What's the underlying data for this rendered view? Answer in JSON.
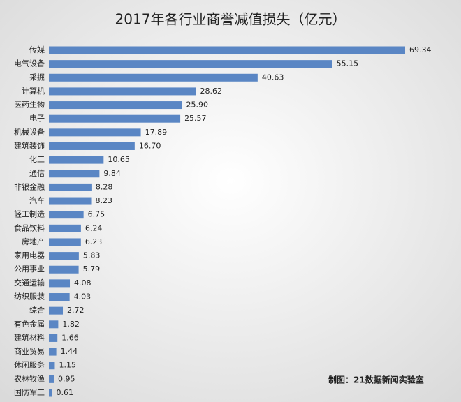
{
  "chart_data": {
    "type": "bar",
    "orientation": "horizontal",
    "title": "2017年各行业商誉减值损失（亿元）",
    "source": "制图：21数据新闻实验室",
    "color": "#5a86c4",
    "categories": [
      "传媒",
      "电气设备",
      "采掘",
      "计算机",
      "医药生物",
      "电子",
      "机械设备",
      "建筑装饰",
      "化工",
      "通信",
      "非银金融",
      "汽车",
      "轻工制造",
      "食品饮料",
      "房地产",
      "家用电器",
      "公用事业",
      "交通运输",
      "纺织服装",
      "综合",
      "有色金属",
      "建筑材料",
      "商业贸易",
      "休闲服务",
      "农林牧渔",
      "国防军工"
    ],
    "values": [
      69.34,
      55.15,
      40.63,
      28.62,
      25.9,
      25.57,
      17.89,
      16.7,
      10.65,
      9.84,
      8.28,
      8.23,
      6.75,
      6.24,
      6.23,
      5.83,
      5.79,
      4.08,
      4.03,
      2.72,
      1.82,
      1.66,
      1.44,
      1.15,
      0.95,
      0.61
    ],
    "value_labels": [
      "69.34",
      "55.15",
      "40.63",
      "28.62",
      "25.90",
      "25.57",
      "17.89",
      "16.70",
      "10.65",
      "9.84",
      "8.28",
      "8.23",
      "6.75",
      "6.24",
      "6.23",
      "5.83",
      "5.79",
      "4.08",
      "4.03",
      "2.72",
      "1.82",
      "1.66",
      "1.44",
      "1.15",
      "0.95",
      "0.61"
    ]
  }
}
